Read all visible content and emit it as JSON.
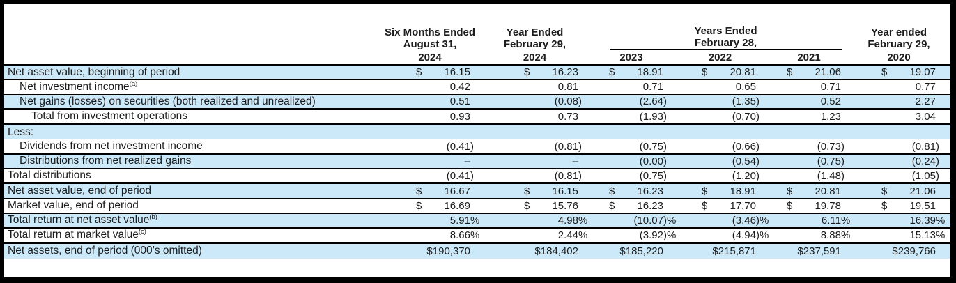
{
  "colors": {
    "row_shade": "#cce9f9",
    "rule": "#000000",
    "text": "#1c1c1c",
    "background": "#ffffff",
    "outer_frame": "#000000"
  },
  "table": {
    "header": {
      "col1": {
        "line1": "Six Months Ended",
        "line2": "August 31,",
        "year": "2024"
      },
      "col2": {
        "line1": "Year Ended",
        "line2": "February 29,",
        "year": "2024"
      },
      "group": {
        "line1": "Years Ended",
        "line2": "February 28,",
        "years": [
          "2023",
          "2022",
          "2021"
        ]
      },
      "col6": {
        "line1": "Year ended",
        "line2": "February 29,",
        "year": "2020"
      }
    },
    "rows": [
      {
        "label": "Net asset value, beginning of period",
        "sup": "",
        "indent": 0,
        "shaded": true,
        "border": "thin",
        "cells": [
          [
            "$",
            "16.15",
            ""
          ],
          [
            "$",
            "16.23",
            ""
          ],
          [
            "$",
            "18.91",
            ""
          ],
          [
            "$",
            "20.81",
            ""
          ],
          [
            "$",
            "21.06",
            ""
          ],
          [
            "$",
            "19.07",
            ""
          ]
        ]
      },
      {
        "label": "Net investment income",
        "sup": "(a)",
        "indent": 1,
        "shaded": false,
        "border": "thin",
        "cells": [
          [
            "",
            "0.42",
            ""
          ],
          [
            "",
            "0.81",
            ""
          ],
          [
            "",
            "0.71",
            ""
          ],
          [
            "",
            "0.65",
            ""
          ],
          [
            "",
            "0.71",
            ""
          ],
          [
            "",
            "0.77",
            ""
          ]
        ]
      },
      {
        "label": "Net gains (losses) on securities (both realized and unrealized)",
        "sup": "",
        "indent": 1,
        "shaded": true,
        "border": "thick",
        "cells": [
          [
            "",
            "0.51",
            ""
          ],
          [
            "",
            "(0.08",
            ")"
          ],
          [
            "",
            "(2.64",
            ")"
          ],
          [
            "",
            "(1.35",
            ")"
          ],
          [
            "",
            "0.52",
            ""
          ],
          [
            "",
            "2.27",
            ""
          ]
        ]
      },
      {
        "label": "Total from investment operations",
        "sup": "",
        "indent": 2,
        "shaded": false,
        "border": "thick",
        "cells": [
          [
            "",
            "0.93",
            ""
          ],
          [
            "",
            "0.73",
            ""
          ],
          [
            "",
            "(1.93",
            ")"
          ],
          [
            "",
            "(0.70",
            ")"
          ],
          [
            "",
            "1.23",
            ""
          ],
          [
            "",
            "3.04",
            ""
          ]
        ]
      },
      {
        "label": "Less:",
        "sup": "",
        "indent": 0,
        "shaded": true,
        "border": "none",
        "cells": [
          [
            "",
            "",
            ""
          ],
          [
            "",
            "",
            ""
          ],
          [
            "",
            "",
            ""
          ],
          [
            "",
            "",
            ""
          ],
          [
            "",
            "",
            ""
          ],
          [
            "",
            "",
            ""
          ]
        ]
      },
      {
        "label": "Dividends from net investment income",
        "sup": "",
        "indent": 1,
        "shaded": false,
        "border": "thin",
        "cells": [
          [
            "",
            "(0.41",
            ")"
          ],
          [
            "",
            "(0.81",
            ")"
          ],
          [
            "",
            "(0.75",
            ")"
          ],
          [
            "",
            "(0.66",
            ")"
          ],
          [
            "",
            "(0.73",
            ")"
          ],
          [
            "",
            "(0.81",
            ")"
          ]
        ]
      },
      {
        "label": "Distributions from net realized gains",
        "sup": "",
        "indent": 1,
        "shaded": true,
        "border": "thin",
        "cells": [
          [
            "",
            "–",
            ""
          ],
          [
            "",
            "–",
            ""
          ],
          [
            "",
            "(0.00",
            ")"
          ],
          [
            "",
            "(0.54",
            ")"
          ],
          [
            "",
            "(0.75",
            ")"
          ],
          [
            "",
            "(0.24",
            ")"
          ]
        ]
      },
      {
        "label": "Total distributions",
        "sup": "",
        "indent": 0,
        "shaded": false,
        "border": "thick",
        "cells": [
          [
            "",
            "(0.41",
            ")"
          ],
          [
            "",
            "(0.81",
            ")"
          ],
          [
            "",
            "(0.75",
            ")"
          ],
          [
            "",
            "(1.20",
            ")"
          ],
          [
            "",
            "(1.48",
            ")"
          ],
          [
            "",
            "(1.05",
            ")"
          ]
        ]
      },
      {
        "label": "Net asset value, end of period",
        "sup": "",
        "indent": 0,
        "shaded": true,
        "border": "thin",
        "cells": [
          [
            "$",
            "16.67",
            ""
          ],
          [
            "$",
            "16.15",
            ""
          ],
          [
            "$",
            "16.23",
            ""
          ],
          [
            "$",
            "18.91",
            ""
          ],
          [
            "$",
            "20.81",
            ""
          ],
          [
            "$",
            "21.06",
            ""
          ]
        ]
      },
      {
        "label": "Market value, end of period",
        "sup": "",
        "indent": 0,
        "shaded": false,
        "border": "thin",
        "cells": [
          [
            "$",
            "16.69",
            ""
          ],
          [
            "$",
            "15.76",
            ""
          ],
          [
            "$",
            "16.23",
            ""
          ],
          [
            "$",
            "17.70",
            ""
          ],
          [
            "$",
            "19.78",
            ""
          ],
          [
            "$",
            "19.51",
            ""
          ]
        ]
      },
      {
        "label": "Total return at net asset value",
        "sup": "(b)",
        "indent": 0,
        "shaded": true,
        "border": "thick",
        "cells": [
          [
            "",
            "5.91",
            "%"
          ],
          [
            "",
            "4.98",
            "%"
          ],
          [
            "",
            "(10.07",
            ")%"
          ],
          [
            "",
            "(3.46",
            ")%"
          ],
          [
            "",
            "6.11",
            "%"
          ],
          [
            "",
            "16.39",
            "%"
          ]
        ]
      },
      {
        "label": "Total return at market value",
        "sup": "(c)",
        "indent": 0,
        "shaded": false,
        "border": "thick",
        "cells": [
          [
            "",
            "8.66",
            "%"
          ],
          [
            "",
            "2.44",
            "%"
          ],
          [
            "",
            "(3.92",
            ")%"
          ],
          [
            "",
            "(4.94",
            ")%"
          ],
          [
            "",
            "8.88",
            "%"
          ],
          [
            "",
            "15.13",
            "%"
          ]
        ]
      },
      {
        "label": "Net assets, end of period (000’s omitted)",
        "sup": "",
        "indent": 0,
        "shaded": true,
        "border": "none",
        "cells": [
          [
            "",
            "$190,370",
            ""
          ],
          [
            "",
            "$184,402",
            ""
          ],
          [
            "",
            "$185,220",
            ""
          ],
          [
            "",
            "$215,871",
            ""
          ],
          [
            "",
            "$237,591",
            ""
          ],
          [
            "",
            "$239,766",
            ""
          ]
        ]
      }
    ]
  }
}
